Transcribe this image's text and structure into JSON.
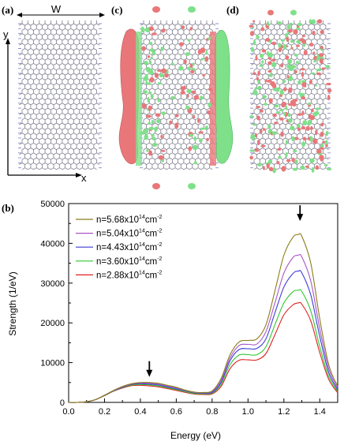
{
  "panels": {
    "a": {
      "label": "(a)",
      "dim_label": "W",
      "y_axis": "y",
      "x_axis": "x"
    },
    "c": {
      "label": "(c)"
    },
    "d": {
      "label": "(d)"
    },
    "b": {
      "label": "(b)"
    }
  },
  "colors": {
    "bond": "#7e7e8e",
    "bond_edge": "#8a88c8",
    "iso_red": "#e9777a",
    "iso_green": "#7fe08a"
  },
  "chart_data": {
    "type": "line",
    "title": "",
    "xlabel": "Energy (eV)",
    "ylabel": "Strength (1/eV)",
    "xlim": [
      0.0,
      1.5
    ],
    "ylim": [
      0,
      50000
    ],
    "xticks": [
      "0.0",
      "0.2",
      "0.4",
      "0.6",
      "0.8",
      "1.0",
      "1.2",
      "1.4"
    ],
    "yticks": [
      "0",
      "10000",
      "20000",
      "30000",
      "40000",
      "50000"
    ],
    "grid": false,
    "legend_position": "top-left",
    "arrows": [
      {
        "x": 0.45,
        "y": 6800
      },
      {
        "x": 1.29,
        "y": 46000
      }
    ],
    "x": [
      0.0,
      0.05,
      0.1,
      0.15,
      0.2,
      0.25,
      0.3,
      0.35,
      0.4,
      0.45,
      0.5,
      0.55,
      0.6,
      0.65,
      0.7,
      0.75,
      0.8,
      0.85,
      0.9,
      0.95,
      1.0,
      1.05,
      1.1,
      1.15,
      1.2,
      1.25,
      1.28,
      1.3,
      1.35,
      1.4,
      1.45,
      1.5
    ],
    "series": [
      {
        "name_parts": [
          "n=5.68x10",
          "14",
          "cm",
          "-2"
        ],
        "color": "#8a7d1a",
        "values": [
          0,
          0,
          150,
          700,
          1800,
          3000,
          4000,
          4700,
          5000,
          5000,
          4800,
          4300,
          3800,
          3100,
          2600,
          2500,
          2900,
          6000,
          12000,
          15200,
          15600,
          16000,
          19500,
          28000,
          37000,
          41500,
          42200,
          41800,
          35000,
          21000,
          9500,
          4000
        ]
      },
      {
        "name_parts": [
          "n=5.04x10",
          "14",
          "cm",
          "-2"
        ],
        "color": "#a855c8",
        "values": [
          0,
          0,
          150,
          700,
          1800,
          2950,
          3900,
          4600,
          4900,
          4800,
          4600,
          4100,
          3600,
          3000,
          2500,
          2400,
          2700,
          5500,
          11200,
          14300,
          14600,
          14700,
          17800,
          25000,
          32500,
          36400,
          37000,
          36600,
          30500,
          18500,
          8500,
          3500
        ]
      },
      {
        "name_parts": [
          "n=4.43x10",
          "14",
          "cm",
          "-2"
        ],
        "color": "#3d3dd8",
        "values": [
          0,
          0,
          150,
          700,
          1800,
          2900,
          3800,
          4500,
          4700,
          4600,
          4400,
          3900,
          3400,
          2900,
          2400,
          2300,
          2500,
          5000,
          10500,
          13300,
          13500,
          13600,
          16000,
          22500,
          29000,
          32400,
          33000,
          32600,
          27000,
          16500,
          7500,
          3100
        ]
      },
      {
        "name_parts": [
          "n=3.60x10",
          "14",
          "cm",
          "-2"
        ],
        "color": "#2ec82e",
        "values": [
          0,
          0,
          150,
          700,
          1750,
          2850,
          3700,
          4350,
          4500,
          4400,
          4150,
          3700,
          3200,
          2700,
          2250,
          2150,
          2350,
          4500,
          9500,
          11900,
          12000,
          12000,
          14000,
          19500,
          25000,
          27800,
          28200,
          27900,
          23000,
          14000,
          6500,
          2700
        ]
      },
      {
        "name_parts": [
          "n=2.88x10",
          "14",
          "cm",
          "-2"
        ],
        "color": "#e02020",
        "values": [
          0,
          0,
          150,
          700,
          1700,
          2800,
          3600,
          4200,
          4300,
          4150,
          3900,
          3500,
          3000,
          2500,
          2100,
          2000,
          2150,
          4000,
          8500,
          10600,
          10700,
          10700,
          12300,
          17000,
          22000,
          24500,
          25000,
          24700,
          20500,
          12500,
          5800,
          2400
        ]
      }
    ]
  }
}
